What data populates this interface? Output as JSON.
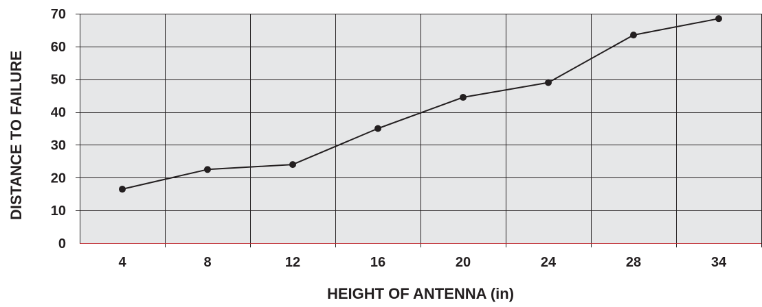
{
  "chart_data": {
    "type": "line",
    "title": "",
    "xlabel": "HEIGHT OF ANTENNA (in)",
    "ylabel": "DISTANCE TO FAILURE",
    "categories": [
      "4",
      "8",
      "12",
      "16",
      "20",
      "24",
      "28",
      "34"
    ],
    "series": [
      {
        "values": [
          16.5,
          22.5,
          24,
          35,
          44.5,
          49,
          63.5,
          68.5
        ]
      }
    ],
    "ylim": [
      0,
      70
    ],
    "yticks": [
      0,
      10,
      20,
      30,
      40,
      50,
      60,
      70
    ],
    "grid": true,
    "legend": "none",
    "colors": {
      "plot_background": "#e6e7e8",
      "grid": "#231f20",
      "line": "#231f20",
      "marker": "#231f20",
      "baseline": "#c1272d"
    }
  }
}
